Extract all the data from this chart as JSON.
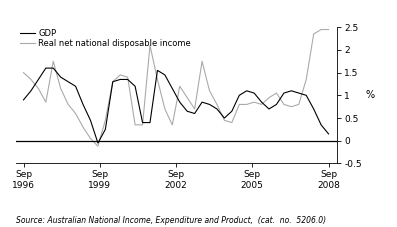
{
  "source": "Source: Australian National Income, Expenditure and Product,  (cat.  no.  5206.0)",
  "ylabel_right": "%",
  "legend_entries": [
    "GDP",
    "Real net national disposable income"
  ],
  "legend_colors": [
    "#000000",
    "#aaaaaa"
  ],
  "ylim": [
    -0.5,
    2.5
  ],
  "yticks": [
    -0.5,
    0,
    0.5,
    1.0,
    1.5,
    2.0,
    2.5
  ],
  "xtick_labels": [
    "Sep\n1996",
    "Sep\n1999",
    "Sep\n2002",
    "Sep\n2005",
    "Sep\n2008"
  ],
  "xtick_positions": [
    1996.75,
    1999.75,
    2002.75,
    2005.75,
    2008.75
  ],
  "gdp": [
    0.9,
    1.1,
    1.35,
    1.6,
    1.6,
    1.4,
    1.3,
    1.2,
    0.8,
    0.45,
    -0.05,
    0.25,
    1.3,
    1.35,
    1.35,
    1.2,
    0.4,
    0.4,
    1.55,
    1.45,
    1.15,
    0.85,
    0.65,
    0.6,
    0.85,
    0.8,
    0.7,
    0.5,
    0.65,
    1.0,
    1.1,
    1.05,
    0.85,
    0.7,
    0.8,
    1.05,
    1.1,
    1.05,
    1.0,
    0.7,
    0.35,
    0.15
  ],
  "rndi": [
    1.5,
    1.35,
    1.15,
    0.85,
    1.75,
    1.15,
    0.8,
    0.6,
    0.3,
    0.05,
    -0.12,
    0.45,
    1.3,
    1.45,
    1.4,
    0.35,
    0.35,
    2.1,
    1.35,
    0.7,
    0.35,
    1.2,
    0.95,
    0.7,
    1.75,
    1.1,
    0.8,
    0.45,
    0.4,
    0.8,
    0.8,
    0.85,
    0.8,
    0.95,
    1.05,
    0.8,
    0.75,
    0.8,
    1.35,
    2.35,
    2.45,
    2.45
  ],
  "gdp_color": "#000000",
  "rndi_color": "#aaaaaa",
  "zero_line_color": "#000000",
  "background_color": "#ffffff",
  "n_points": 42,
  "start_year": 1996.75,
  "end_year": 2009.0,
  "xlim_left": 1996.45,
  "xlim_right": 2009.1
}
